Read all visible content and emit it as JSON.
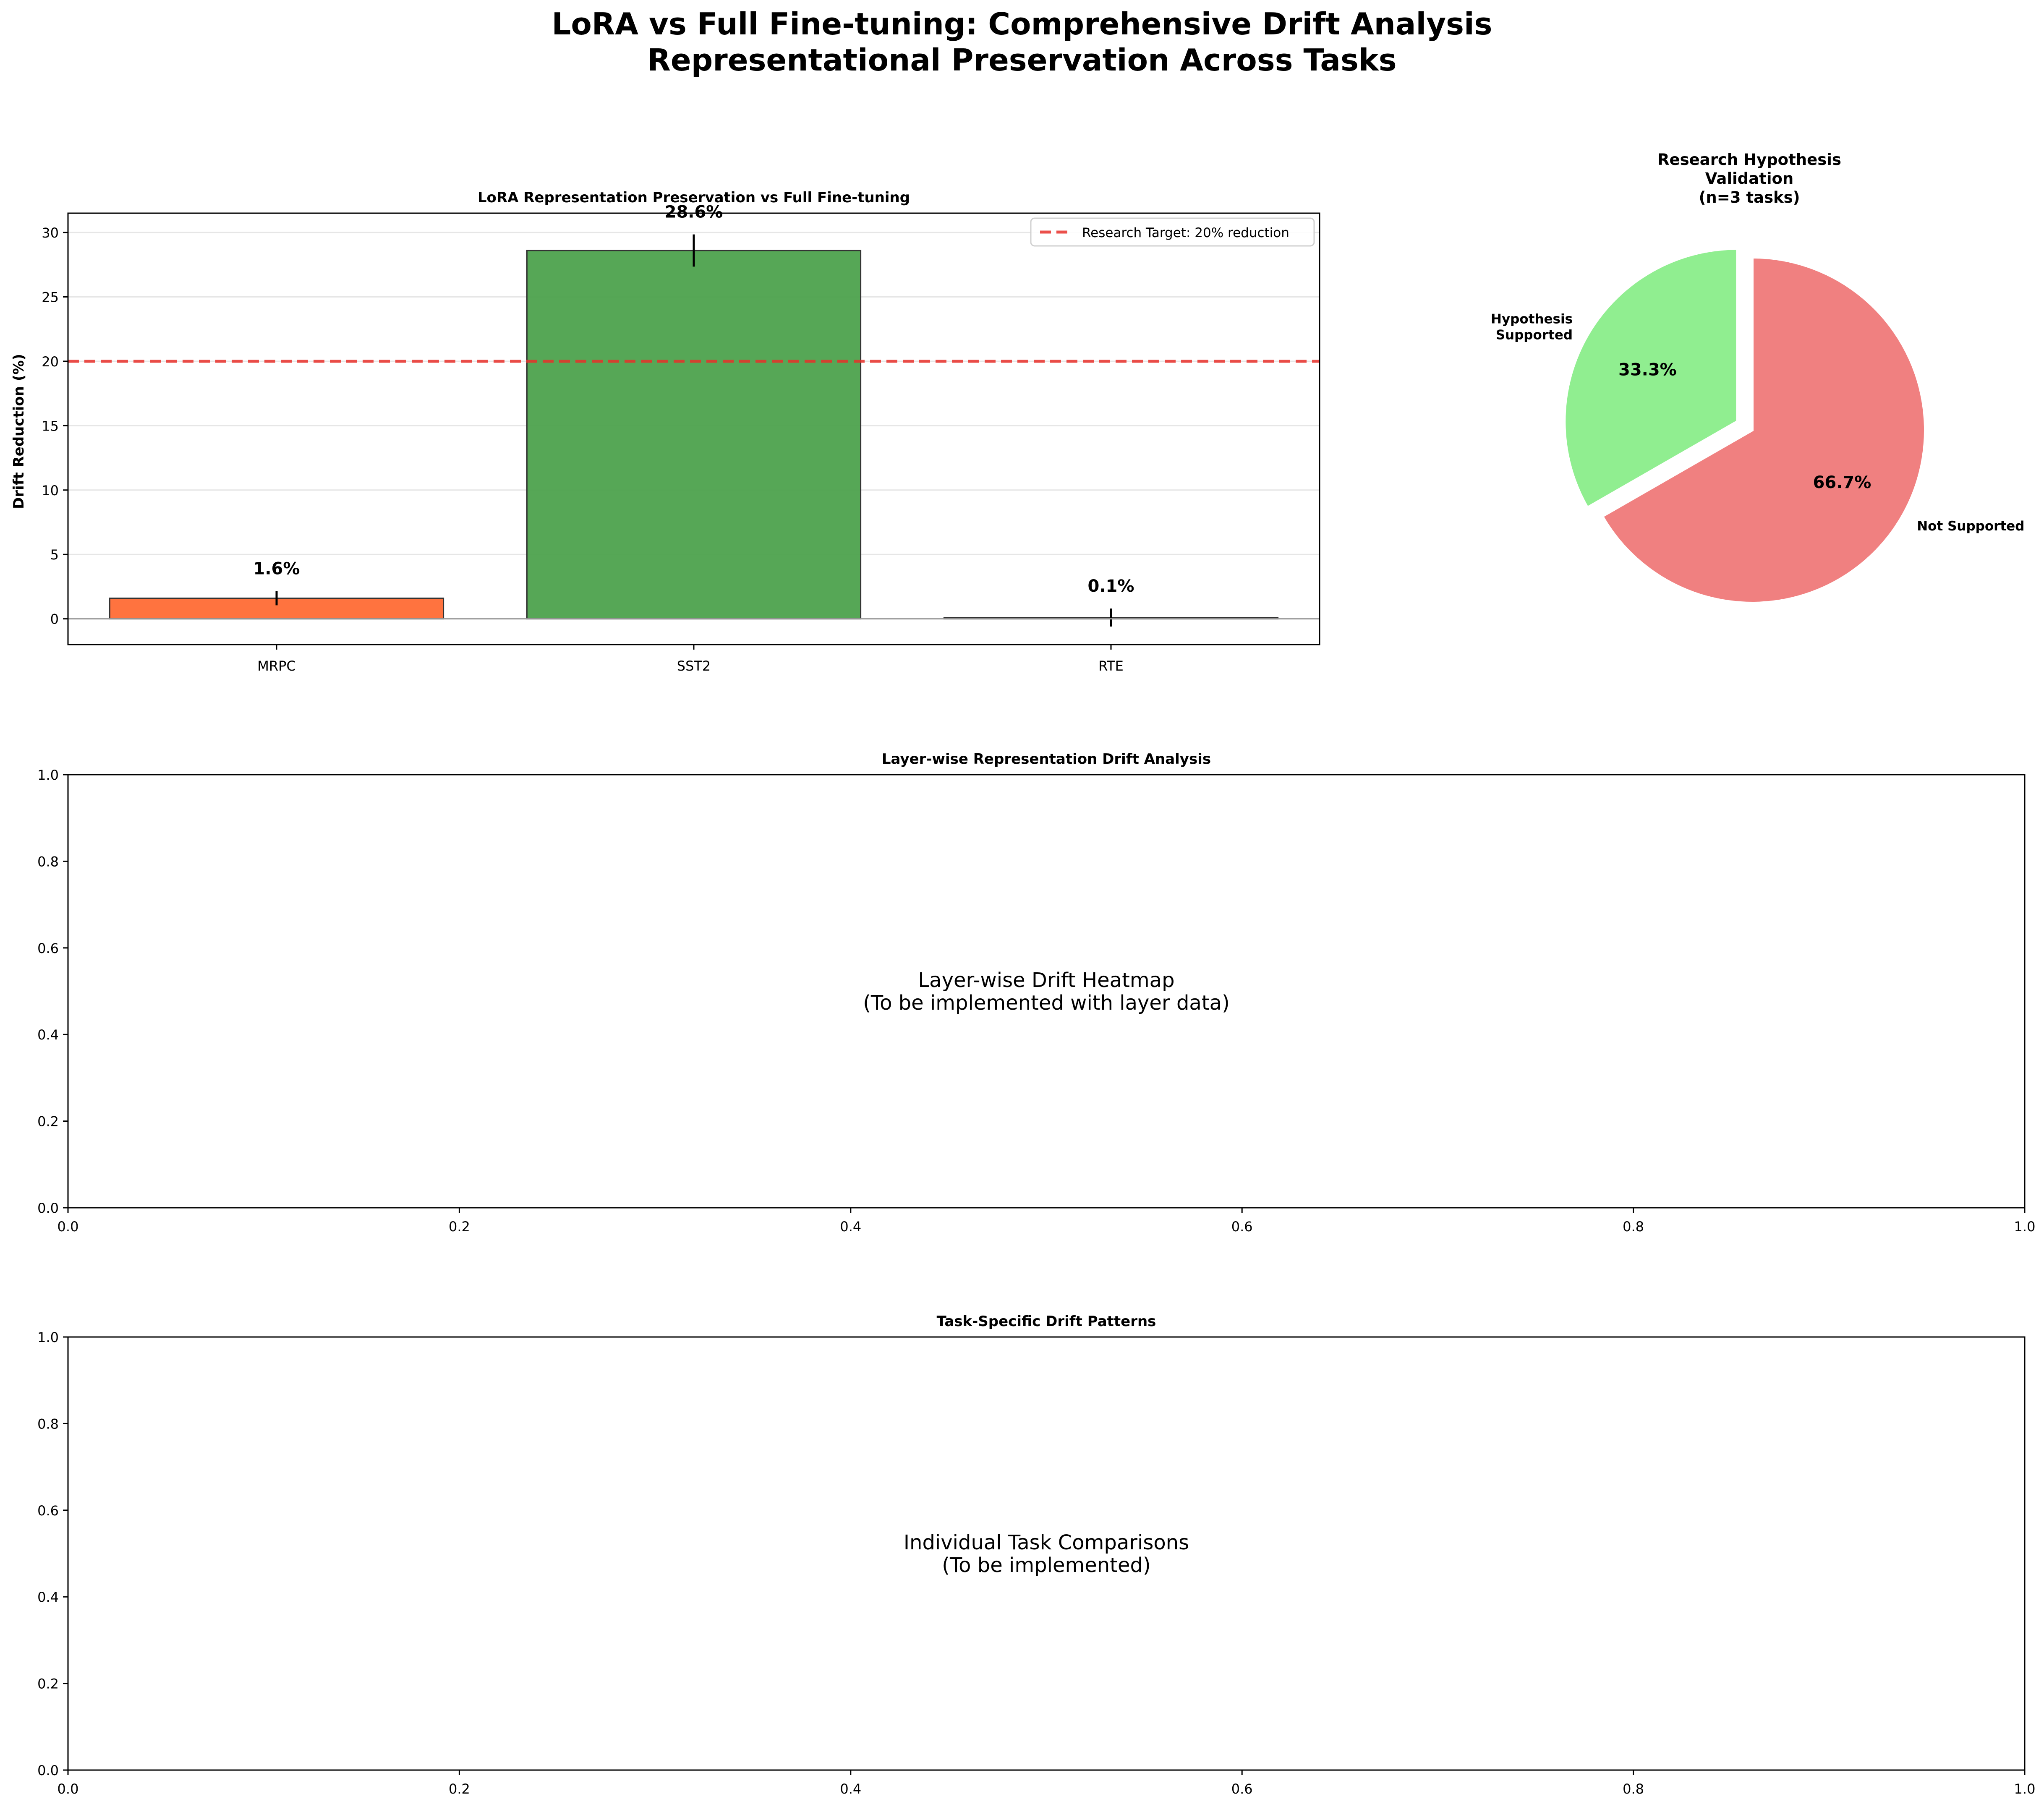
{
  "figure": {
    "title_line1": "LoRA vs Full Fine-tuning: Comprehensive Drift Analysis",
    "title_line2": "Representational Preservation Across Tasks"
  },
  "chart_data": [
    {
      "type": "bar",
      "title": "LoRA Representation Preservation vs Full Fine-tuning",
      "xlabel": "",
      "ylabel": "Drift Reduction (%)",
      "categories": [
        "MRPC",
        "SST2",
        "RTE"
      ],
      "values": [
        1.6,
        28.6,
        0.1
      ],
      "errors": [
        0.55,
        1.25,
        0.7
      ],
      "value_labels": [
        "1.6%",
        "28.6%",
        "0.1%"
      ],
      "bar_colors": [
        "#ff6b35",
        "#4da24d",
        "#c97a4a"
      ],
      "ylim": [
        -2.0,
        31.5
      ],
      "yticks": [
        0,
        5,
        10,
        15,
        20,
        25,
        30
      ],
      "target_line": {
        "value": 20,
        "label": "Research Target: 20% reduction",
        "color": "#e8302a"
      },
      "legend": "top-right",
      "grid": true
    },
    {
      "type": "pie",
      "title_lines": [
        "Research Hypothesis",
        "Validation",
        "(n=3 tasks)"
      ],
      "slices": [
        {
          "label_lines": [
            "Hypothesis",
            "Supported"
          ],
          "value": 33.3,
          "pct_label": "33.3%",
          "color": "#90ee90",
          "exploded": true
        },
        {
          "label_lines": [
            "Not Supported"
          ],
          "value": 66.7,
          "pct_label": "66.7%",
          "color": "#f08080",
          "exploded": false
        }
      ]
    },
    {
      "type": "placeholder",
      "title": "Layer-wise Representation Drift Analysis",
      "message_lines": [
        "Layer-wise Drift Heatmap",
        "(To be implemented with layer data)"
      ],
      "xlim": [
        0,
        1
      ],
      "ylim": [
        0,
        1
      ],
      "ticks": [
        "0.0",
        "0.2",
        "0.4",
        "0.6",
        "0.8",
        "1.0"
      ]
    },
    {
      "type": "placeholder",
      "title": "Task-Specific Drift Patterns",
      "message_lines": [
        "Individual Task Comparisons",
        "(To be implemented)"
      ],
      "xlim": [
        0,
        1
      ],
      "ylim": [
        0,
        1
      ],
      "ticks": [
        "0.0",
        "0.2",
        "0.4",
        "0.6",
        "0.8",
        "1.0"
      ]
    }
  ]
}
